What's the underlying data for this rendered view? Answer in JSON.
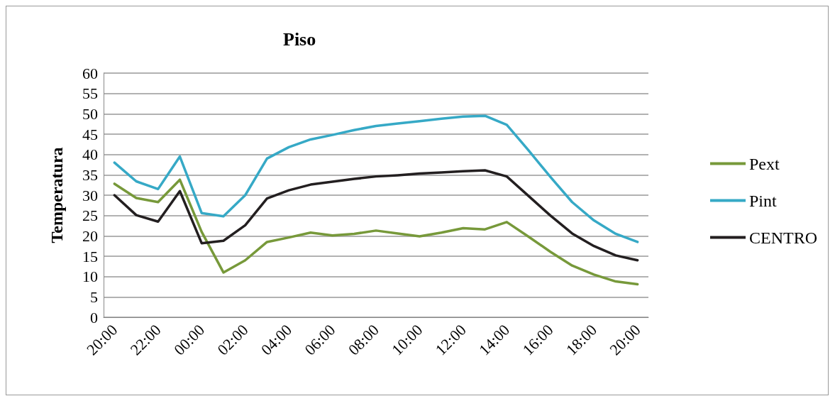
{
  "chart_data": {
    "type": "line",
    "title": "Piso",
    "ylabel": "Temperatura",
    "categories": [
      "20:00",
      null,
      "22:00",
      null,
      "00:00",
      null,
      "02:00",
      null,
      "04:00",
      null,
      "06:00",
      null,
      "08:00",
      null,
      "10:00",
      null,
      "12:00",
      null,
      "14:00",
      null,
      "16:00",
      null,
      "18:00",
      null,
      "20:00"
    ],
    "series": [
      {
        "name": "Pext",
        "color": "#77993a",
        "values": [
          32.8,
          29.3,
          28.3,
          33.8,
          21,
          11,
          14,
          18.5,
          19.6,
          20.8,
          20.1,
          20.5,
          21.3,
          20.6,
          19.9,
          20.8,
          21.9,
          21.6,
          23.4,
          19.8,
          16.1,
          12.7,
          10.5,
          8.8,
          8.1
        ]
      },
      {
        "name": "Pint",
        "color": "#36a9c6",
        "values": [
          38,
          33.4,
          31.5,
          39.5,
          25.6,
          24.8,
          30,
          39,
          41.8,
          43.7,
          44.8,
          46,
          47,
          47.6,
          48.2,
          48.8,
          49.3,
          49.5,
          47.3,
          41,
          34.5,
          28.3,
          23.8,
          20.5,
          18.5
        ]
      },
      {
        "name": "CENTRO",
        "color": "#231f20",
        "values": [
          30,
          25.1,
          23.5,
          31,
          18.2,
          18.8,
          22.6,
          29.2,
          31.2,
          32.6,
          33.3,
          34,
          34.6,
          34.9,
          35.3,
          35.6,
          35.9,
          36.1,
          34.6,
          29.8,
          25,
          20.6,
          17.5,
          15.2,
          14
        ]
      }
    ],
    "ylim": [
      0,
      60
    ],
    "yticks": [
      0,
      5,
      10,
      15,
      20,
      25,
      30,
      35,
      40,
      45,
      50,
      55,
      60
    ],
    "grid": "y",
    "legend": "right",
    "marker": "none",
    "line_style": "solid"
  }
}
